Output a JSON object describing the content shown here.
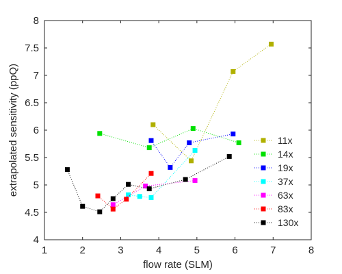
{
  "chart_data": {
    "type": "line",
    "title": "",
    "xlabel": "flow rate (SLM)",
    "ylabel": "extrapolated sensitivity (ppQ)",
    "xlim": [
      1,
      8
    ],
    "ylim": [
      4,
      8
    ],
    "xticks": [
      "1",
      "2",
      "3",
      "4",
      "5",
      "6",
      "7",
      "8"
    ],
    "yticks": [
      "4",
      "4.5",
      "5",
      "5.5",
      "6",
      "6.5",
      "7",
      "7.5",
      "8"
    ],
    "grid": false,
    "legend_position": "bottom-right",
    "line_style": "dotted",
    "marker": "square",
    "series": [
      {
        "name": "11x",
        "color": "#b0b000",
        "x": [
          3.85,
          4.85,
          5.95,
          6.95
        ],
        "y": [
          6.1,
          5.44,
          7.07,
          7.57
        ]
      },
      {
        "name": "14x",
        "color": "#00e000",
        "x": [
          2.45,
          3.75,
          4.9,
          6.1
        ],
        "y": [
          5.94,
          5.68,
          6.03,
          5.77
        ]
      },
      {
        "name": "19x",
        "color": "#0000ff",
        "x": [
          3.8,
          4.3,
          4.8,
          5.95
        ],
        "y": [
          5.81,
          5.32,
          5.77,
          5.93
        ]
      },
      {
        "name": "37x",
        "color": "#00ffff",
        "x": [
          3.2,
          3.5,
          3.8,
          4.95
        ],
        "y": [
          4.82,
          4.79,
          4.77,
          5.63
        ]
      },
      {
        "name": "63x",
        "color": "#ff00ff",
        "x": [
          2.8,
          3.65,
          4.95
        ],
        "y": [
          4.64,
          4.98,
          5.08
        ]
      },
      {
        "name": "83x",
        "color": "#ff0000",
        "x": [
          2.4,
          2.8,
          3.15,
          3.8
        ],
        "y": [
          4.8,
          4.56,
          4.74,
          5.21
        ]
      },
      {
        "name": "130x",
        "color": "#000000",
        "x": [
          1.6,
          2.0,
          2.45,
          2.8,
          3.2,
          3.75,
          4.7,
          5.85
        ],
        "y": [
          5.28,
          4.61,
          4.51,
          4.75,
          5.01,
          4.93,
          5.1,
          5.52
        ]
      }
    ]
  }
}
